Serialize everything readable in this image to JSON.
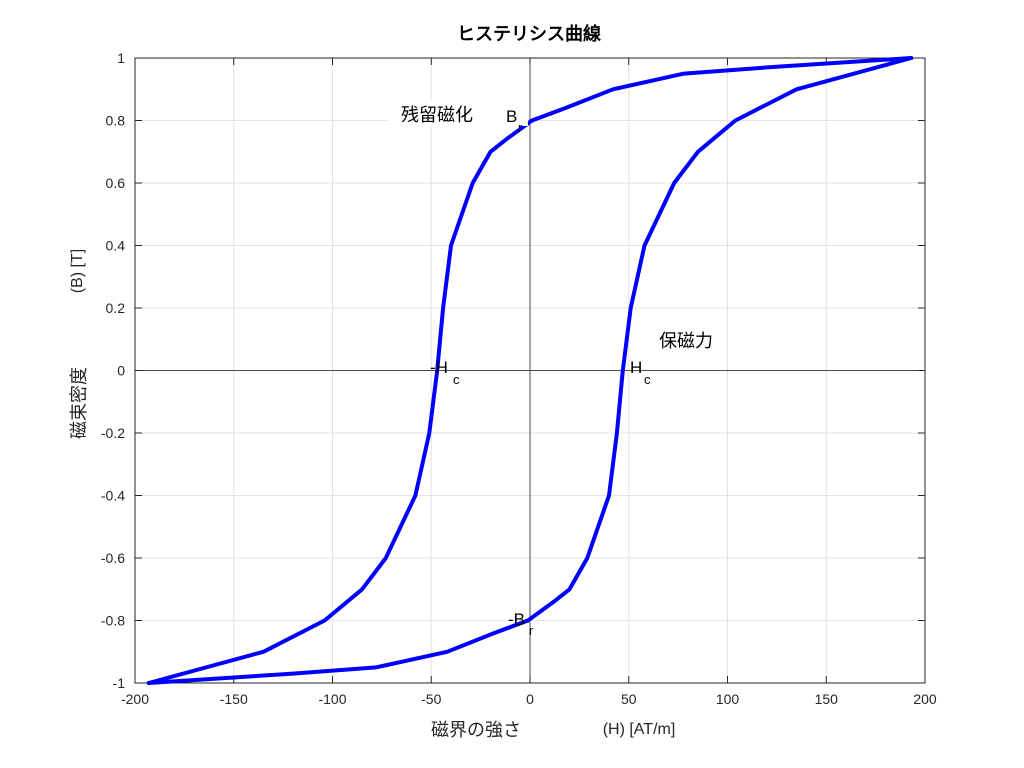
{
  "chart_data": {
    "type": "line",
    "title": "ヒステリシス曲線",
    "xlabel_main": "磁界の強さ",
    "xlabel_unit": "(H) [AT/m]",
    "ylabel_main": "磁束密度",
    "ylabel_unit": "(B) [T]",
    "xlim": [
      -200,
      200
    ],
    "ylim": [
      -1,
      1
    ],
    "xticks": [
      -200,
      -150,
      -100,
      -50,
      0,
      50,
      100,
      150,
      200
    ],
    "yticks": [
      -1,
      -0.8,
      -0.6,
      -0.4,
      -0.2,
      0,
      0.2,
      0.4,
      0.6,
      0.8,
      1
    ],
    "xtick_labels": [
      "-200",
      "-150",
      "-100",
      "-50",
      "0",
      "50",
      "100",
      "150",
      "200"
    ],
    "ytick_labels": [
      "-1",
      "-0.8",
      "-0.6",
      "-0.4",
      "-0.2",
      "0",
      "0.2",
      "0.4",
      "0.6",
      "0.8",
      "1"
    ],
    "grid": true,
    "line_color": "#0000ff",
    "series": [
      {
        "x": [
          193,
          120,
          78,
          42,
          18,
          1,
          -12,
          -20,
          -29,
          -40,
          -44,
          -47,
          -51,
          -58,
          -73,
          -85,
          -104,
          -135,
          -193
        ],
        "y": [
          1,
          0.97,
          0.95,
          0.9,
          0.84,
          0.8,
          0.74,
          0.7,
          0.6,
          0.4,
          0.2,
          0,
          -0.2,
          -0.4,
          -0.6,
          -0.7,
          -0.8,
          -0.9,
          -1
        ]
      },
      {
        "x": [
          -193,
          -120,
          -78,
          -42,
          -18,
          -1,
          12,
          20,
          29,
          40,
          44,
          47,
          51,
          58,
          73,
          85,
          104,
          135,
          193
        ],
        "y": [
          -1,
          -0.97,
          -0.95,
          -0.9,
          -0.84,
          -0.8,
          -0.74,
          -0.7,
          -0.6,
          -0.4,
          -0.2,
          0,
          0.2,
          0.4,
          0.6,
          0.7,
          0.8,
          0.9,
          1
        ]
      }
    ],
    "annotations": {
      "remanence_label": "残留磁化",
      "coercivity_label": "保磁力",
      "br_base": "B",
      "br_sub": "r",
      "neg_br_base": "-B",
      "neg_br_sub": "r",
      "hc_base": "H",
      "hc_sub": "c",
      "neg_hc_base": "-H",
      "neg_hc_sub": "c"
    }
  }
}
